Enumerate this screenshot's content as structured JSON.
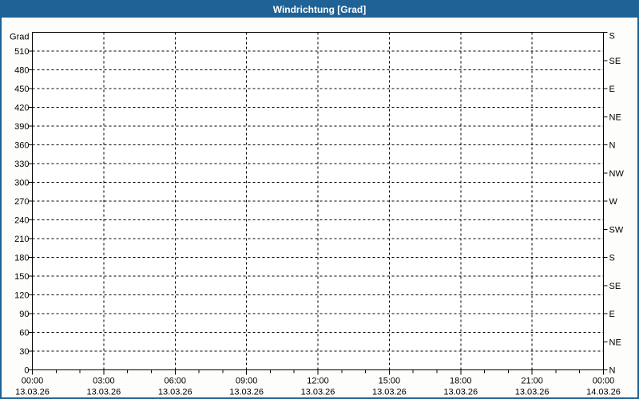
{
  "window": {
    "title": "Windrichtung [Grad]"
  },
  "colors": {
    "frame": "#1E6296",
    "title_text": "#FFFFFF",
    "background": "#FDFDFB",
    "plot_background": "#FFFFFF",
    "axis": "#000000",
    "grid": "#000000",
    "label_text": "#000000"
  },
  "chart_data": {
    "type": "line",
    "title": "Windrichtung [Grad]",
    "legend": "none",
    "grid": {
      "style": "dashed",
      "horizontal_step_degrees": 30,
      "vertical_step_hours": 3
    },
    "y_axis_left": {
      "title": "Grad",
      "min": 0,
      "max": 540,
      "step": 30,
      "tick_values": [
        0,
        30,
        60,
        90,
        120,
        150,
        180,
        210,
        240,
        270,
        300,
        330,
        360,
        390,
        420,
        450,
        480,
        510
      ]
    },
    "y_axis_right": {
      "step": 45,
      "ticks": [
        {
          "value": 0,
          "label": "N"
        },
        {
          "value": 45,
          "label": "NE"
        },
        {
          "value": 90,
          "label": "E"
        },
        {
          "value": 135,
          "label": "SE"
        },
        {
          "value": 180,
          "label": "S"
        },
        {
          "value": 225,
          "label": "SW"
        },
        {
          "value": 270,
          "label": "W"
        },
        {
          "value": 315,
          "label": "NW"
        },
        {
          "value": 360,
          "label": "N"
        },
        {
          "value": 405,
          "label": "NE"
        },
        {
          "value": 450,
          "label": "E"
        },
        {
          "value": 495,
          "label": "SE"
        },
        {
          "value": 540,
          "label": "S"
        }
      ]
    },
    "x_axis": {
      "minor_step_hours": 1,
      "major_step_hours": 3,
      "ticks": [
        {
          "hour": 0,
          "time": "00:00",
          "date": "13.03.26"
        },
        {
          "hour": 3,
          "time": "03:00",
          "date": "13.03.26"
        },
        {
          "hour": 6,
          "time": "06:00",
          "date": "13.03.26"
        },
        {
          "hour": 9,
          "time": "09:00",
          "date": "13.03.26"
        },
        {
          "hour": 12,
          "time": "12:00",
          "date": "13.03.26"
        },
        {
          "hour": 15,
          "time": "15:00",
          "date": "13.03.26"
        },
        {
          "hour": 18,
          "time": "18:00",
          "date": "13.03.26"
        },
        {
          "hour": 21,
          "time": "21:00",
          "date": "13.03.26"
        },
        {
          "hour": 24,
          "time": "00:00",
          "date": "14.03.26"
        }
      ]
    },
    "series": []
  }
}
